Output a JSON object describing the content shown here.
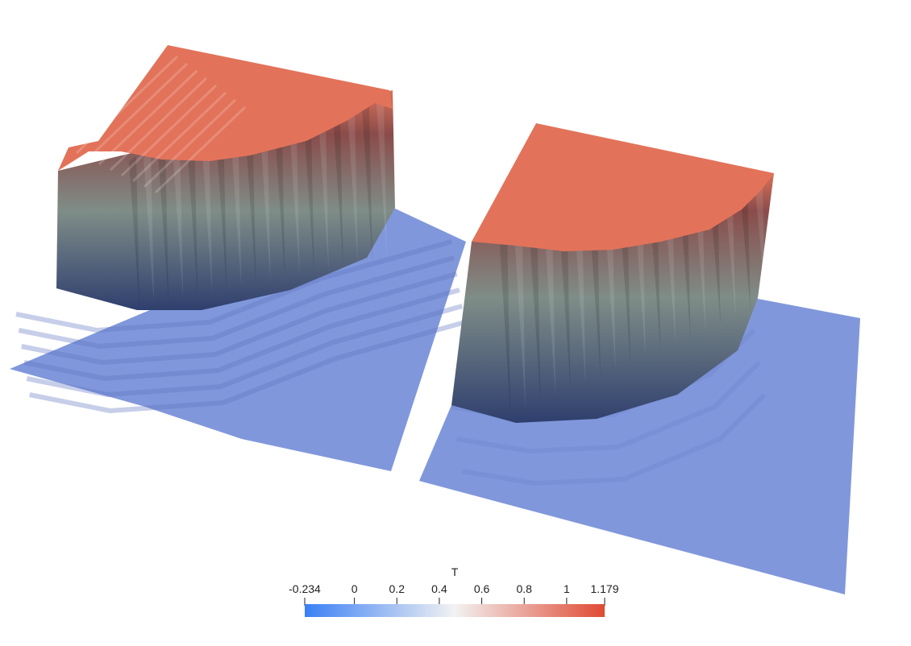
{
  "colorbar": {
    "title": "T",
    "ticks": [
      {
        "label": "-0.234",
        "value": -0.234
      },
      {
        "label": "0",
        "value": 0
      },
      {
        "label": "0.2",
        "value": 0.2
      },
      {
        "label": "0.4",
        "value": 0.4
      },
      {
        "label": "0.6",
        "value": 0.6
      },
      {
        "label": "0.8",
        "value": 0.8
      },
      {
        "label": "1",
        "value": 1
      },
      {
        "label": "1.179",
        "value": 1.179
      }
    ],
    "range": [
      -0.234,
      1.179
    ],
    "colors": {
      "low": "#3b7ff5",
      "mid": "#f2f2f2",
      "high": "#e04a33"
    }
  },
  "surface_colors": {
    "top": "#e2735a",
    "base": "#8097db",
    "wall_dark": "#2f3f6e",
    "wall_mid": "#7f8d88",
    "wall_high": "#d9715a"
  }
}
